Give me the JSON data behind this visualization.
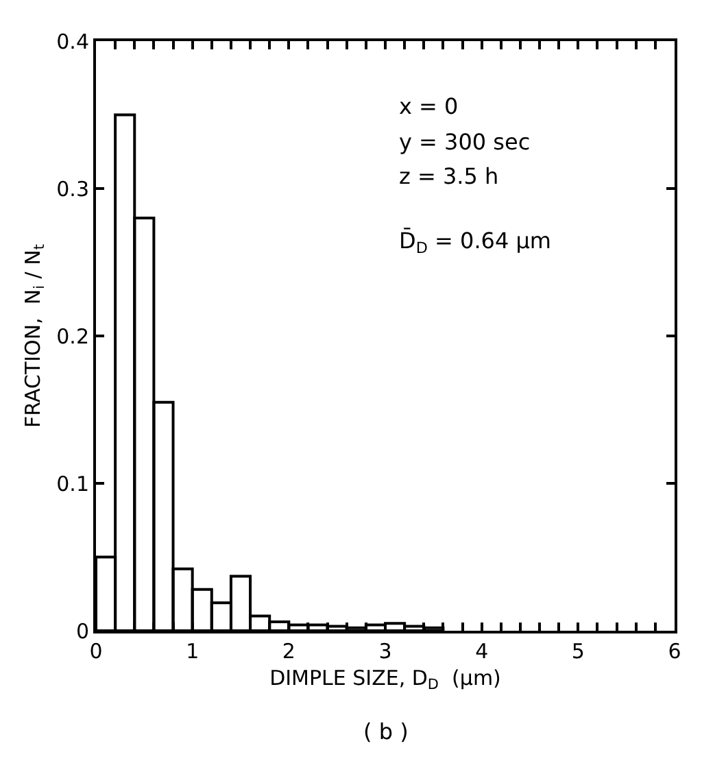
{
  "chart_data": {
    "type": "histogram",
    "xlabel": "DIMPLE SIZE, D$_{D}$  (μm)",
    "ylabel": "FRACTION,  N$_{i}$ / N$_{t}$",
    "bins": [
      0,
      0.2,
      0.4,
      0.6,
      0.8,
      1.0,
      1.2,
      1.4,
      1.6,
      1.8,
      2.0,
      2.2,
      2.4,
      2.6,
      2.8,
      3.0,
      3.2,
      3.4,
      3.6
    ],
    "values": [
      0.05,
      0.35,
      0.28,
      0.155,
      0.042,
      0.028,
      0.019,
      0.037,
      0.01,
      0.006,
      0.004,
      0.004,
      0.003,
      0.002,
      0.004,
      0.005,
      0.003,
      0.002
    ],
    "color": "#000000",
    "xlim": [
      0,
      6
    ],
    "xticks": [
      0,
      {
        "value": 0.2,
        "label": null
      },
      {
        "value": 0.4,
        "label": null
      },
      {
        "value": 0.6,
        "label": null
      },
      {
        "value": 0.8,
        "label": null
      },
      1,
      {
        "value": 1.2,
        "label": null
      },
      {
        "value": 1.4,
        "label": null
      },
      {
        "value": 1.6,
        "label": null
      },
      {
        "value": 1.8,
        "label": null
      },
      2,
      {
        "value": 2.2,
        "label": null
      },
      {
        "value": 2.4,
        "label": null
      },
      {
        "value": 2.6,
        "label": null
      },
      {
        "value": 2.8,
        "label": null
      },
      3,
      {
        "value": 3.2,
        "label": null
      },
      {
        "value": 3.4,
        "label": null
      },
      {
        "value": 3.6,
        "label": null
      },
      {
        "value": 3.8,
        "label": null
      },
      4,
      {
        "value": 4.2,
        "label": null
      },
      {
        "value": 4.4,
        "label": null
      },
      {
        "value": 4.6,
        "label": null
      },
      {
        "value": 4.8,
        "label": null
      },
      5,
      {
        "value": 5.2,
        "label": null
      },
      {
        "value": 5.4,
        "label": null
      },
      {
        "value": 5.6,
        "label": null
      },
      {
        "value": 5.8,
        "label": null
      },
      6
    ],
    "ylim": [
      0,
      0.4
    ],
    "yticks": [
      0,
      0.1,
      0.2,
      0.3,
      0.4
    ],
    "annotations": [
      "x = 0",
      "y = 300 sec",
      "z = 3.5 h",
      "D̄$_{D}$ = 0.64 μm",
      "( b )"
    ]
  }
}
